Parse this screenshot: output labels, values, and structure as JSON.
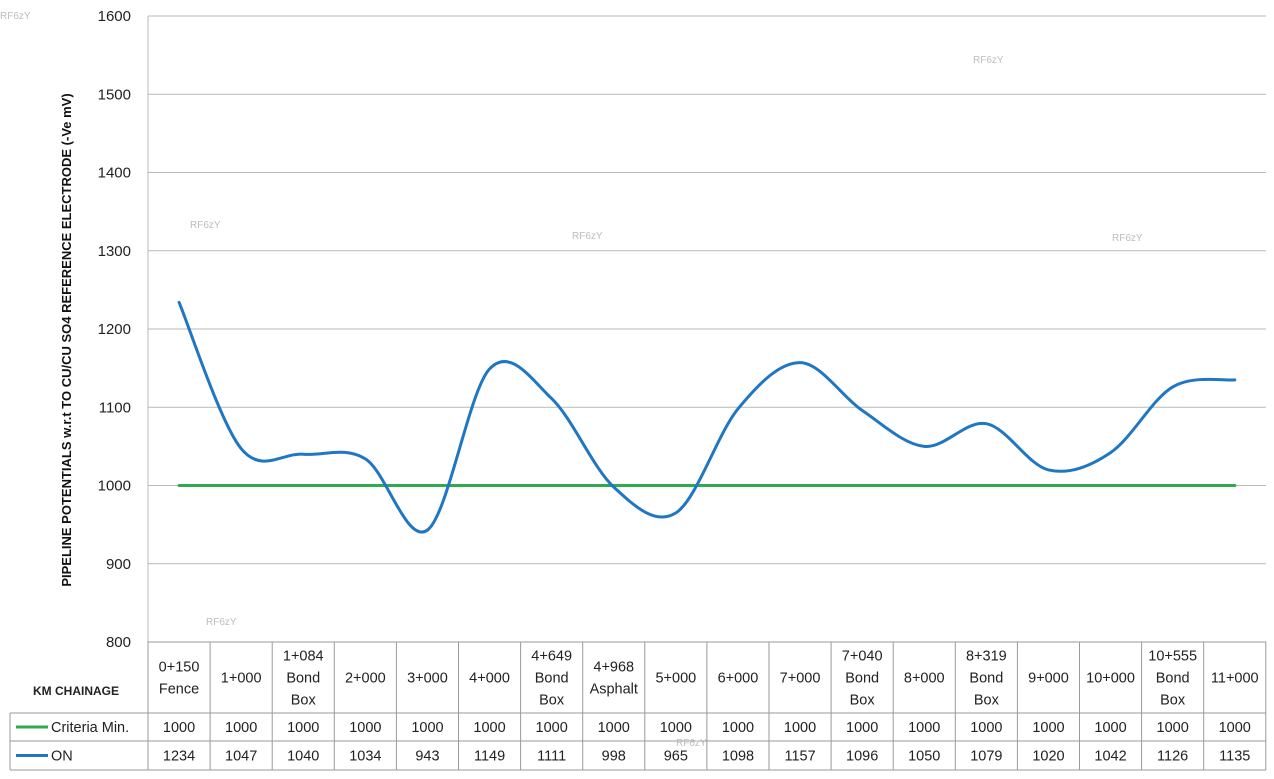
{
  "chart_data": {
    "type": "line",
    "ylabel": "PIPELINE POTENTIALS w.r.t TO CU/CU SO4 REFERENCE ELECTRODE (-Ve mV)",
    "xlabel": "KM CHAINAGE",
    "ylim": [
      800,
      1600
    ],
    "yticks": [
      800,
      900,
      1000,
      1100,
      1200,
      1300,
      1400,
      1500,
      1600
    ],
    "grid": true,
    "legend": "data-table-left",
    "categories": [
      [
        "0+150",
        "Fence"
      ],
      [
        "1+000"
      ],
      [
        "1+084",
        "Bond",
        "Box"
      ],
      [
        "2+000"
      ],
      [
        "3+000"
      ],
      [
        "4+000"
      ],
      [
        "4+649",
        "Bond",
        "Box"
      ],
      [
        "4+968",
        "Asphalt"
      ],
      [
        "5+000"
      ],
      [
        "6+000"
      ],
      [
        "7+000"
      ],
      [
        "7+040",
        "Bond",
        "Box"
      ],
      [
        "8+000"
      ],
      [
        "8+319",
        "Bond",
        "Box"
      ],
      [
        "9+000"
      ],
      [
        "10+000"
      ],
      [
        "10+555",
        "Bond",
        "Box"
      ],
      [
        "11+000"
      ]
    ],
    "series": [
      {
        "name": "Criteria Min.",
        "color": "#2eaa4f",
        "values": [
          1000,
          1000,
          1000,
          1000,
          1000,
          1000,
          1000,
          1000,
          1000,
          1000,
          1000,
          1000,
          1000,
          1000,
          1000,
          1000,
          1000,
          1000
        ]
      },
      {
        "name": "ON",
        "color": "#1f77c4",
        "values": [
          1234,
          1047,
          1040,
          1034,
          943,
          1149,
          1111,
          998,
          965,
          1098,
          1157,
          1096,
          1050,
          1079,
          1020,
          1042,
          1126,
          1135
        ]
      }
    ]
  },
  "watermarks": [
    "RF6zY",
    "RF6zY",
    "RF6zY",
    "RF6zY",
    "RF6zY",
    "RF6zY",
    "RF6zY"
  ]
}
